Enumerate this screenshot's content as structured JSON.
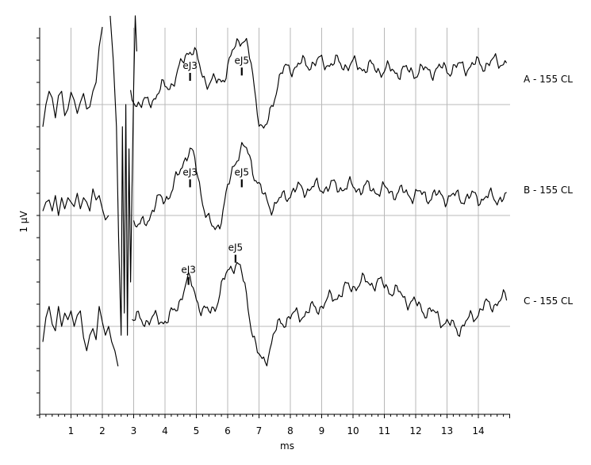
{
  "chart_data": {
    "type": "line",
    "xlabel": "ms",
    "ylabel": "1 µV",
    "xlim": [
      0,
      15
    ],
    "x_ticks": [
      "1",
      "2",
      "3",
      "4",
      "5",
      "6",
      "7",
      "8",
      "9",
      "10",
      "11",
      "12",
      "13",
      "14"
    ],
    "grid": true,
    "series": [
      {
        "name": "A - 155 CL",
        "baseline_uv": 5.0,
        "points": [
          [
            0.1,
            4.5
          ],
          [
            0.2,
            5.0
          ],
          [
            0.3,
            5.3
          ],
          [
            0.4,
            5.15
          ],
          [
            0.5,
            4.7
          ],
          [
            0.6,
            5.2
          ],
          [
            0.7,
            5.3
          ],
          [
            0.8,
            4.75
          ],
          [
            0.9,
            4.9
          ],
          [
            1.0,
            5.28
          ],
          [
            1.1,
            5.1
          ],
          [
            1.2,
            4.8
          ],
          [
            1.3,
            5.05
          ],
          [
            1.4,
            5.25
          ],
          [
            1.5,
            4.9
          ],
          [
            1.6,
            4.95
          ],
          [
            1.7,
            5.3
          ],
          [
            1.8,
            5.5
          ],
          [
            1.9,
            6.3
          ],
          [
            2.0,
            6.75
          ]
        ],
        "peaks": [
          {
            "label": "eJ3",
            "x": 4.8,
            "y": 5.5
          },
          {
            "label": "eJ5",
            "x": 6.45,
            "y": 5.62
          }
        ]
      },
      {
        "name": "B - 155 CL",
        "baseline_uv": 2.5,
        "points": [
          [
            0.1,
            2.6
          ],
          [
            0.2,
            2.8
          ],
          [
            0.3,
            2.85
          ],
          [
            0.4,
            2.6
          ],
          [
            0.5,
            2.95
          ],
          [
            0.6,
            2.5
          ],
          [
            0.7,
            2.9
          ],
          [
            0.8,
            2.65
          ],
          [
            0.9,
            2.9
          ],
          [
            1.0,
            2.8
          ],
          [
            1.1,
            2.7
          ],
          [
            1.2,
            3.0
          ],
          [
            1.3,
            2.65
          ],
          [
            1.4,
            2.9
          ],
          [
            1.5,
            2.8
          ],
          [
            1.6,
            2.6
          ],
          [
            1.7,
            3.1
          ],
          [
            1.8,
            2.85
          ],
          [
            1.9,
            2.95
          ],
          [
            2.0,
            2.65
          ],
          [
            2.1,
            2.4
          ],
          [
            2.2,
            2.5
          ]
        ],
        "peaks": [
          {
            "label": "eJ3",
            "x": 4.8,
            "y": 3.1
          },
          {
            "label": "eJ5",
            "x": 6.45,
            "y": 3.1
          }
        ]
      },
      {
        "name": "C - 155 CL",
        "baseline_uv": 0.0,
        "points": [
          [
            0.1,
            -0.35
          ],
          [
            0.2,
            0.2
          ],
          [
            0.3,
            0.45
          ],
          [
            0.4,
            0.05
          ],
          [
            0.5,
            -0.1
          ],
          [
            0.6,
            0.45
          ],
          [
            0.7,
            0.0
          ],
          [
            0.8,
            0.3
          ],
          [
            0.9,
            0.15
          ],
          [
            1.0,
            0.35
          ],
          [
            1.1,
            0.0
          ],
          [
            1.2,
            0.25
          ],
          [
            1.3,
            0.35
          ],
          [
            1.4,
            -0.25
          ],
          [
            1.5,
            -0.55
          ],
          [
            1.6,
            -0.2
          ],
          [
            1.7,
            -0.05
          ],
          [
            1.8,
            -0.3
          ],
          [
            1.9,
            0.45
          ],
          [
            2.0,
            0.1
          ],
          [
            2.1,
            -0.2
          ],
          [
            2.2,
            0.0
          ],
          [
            2.3,
            -0.35
          ],
          [
            2.4,
            -0.55
          ],
          [
            2.5,
            -0.9
          ]
        ],
        "peaks": [
          {
            "label": "eJ3",
            "x": 4.75,
            "y": 0.9
          },
          {
            "label": "eJ5",
            "x": 6.25,
            "y": 1.4
          }
        ]
      }
    ]
  }
}
